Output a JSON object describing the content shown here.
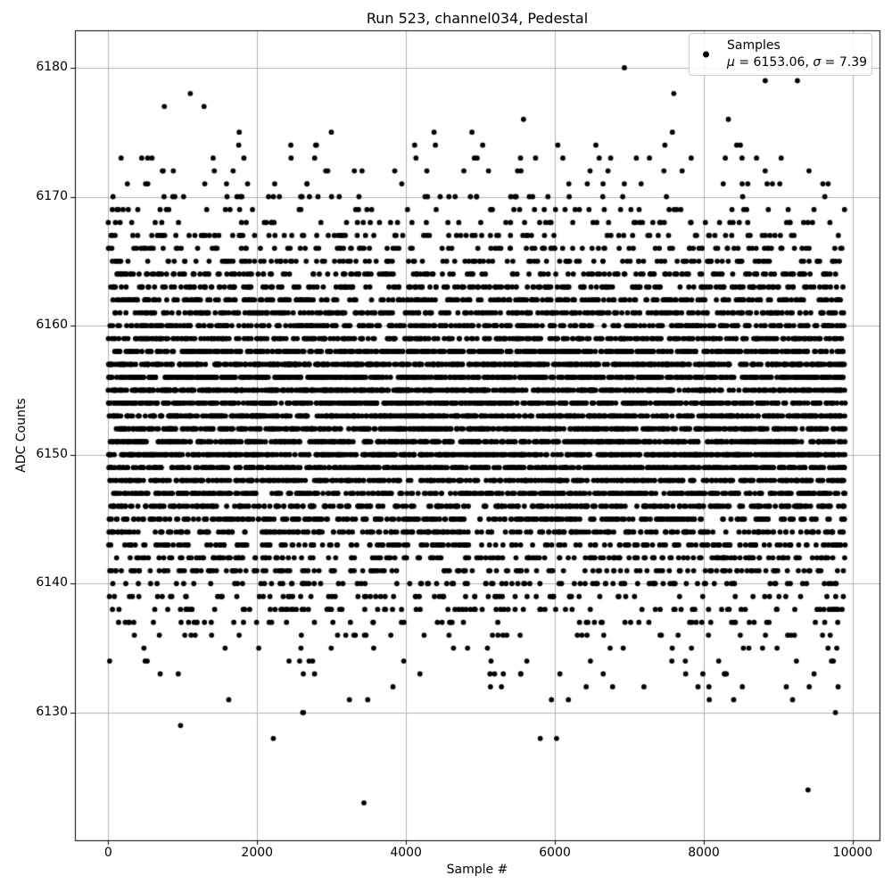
{
  "figure": {
    "title": "Run 523, channel034, Pedestal",
    "background_color": "#ffffff"
  },
  "axes": {
    "xlabel": "Sample #",
    "ylabel": "ADC Counts",
    "grid_color": "#b0b0b0",
    "spine_color": "#000000",
    "tick_color": "#000000"
  },
  "legend": {
    "series_label": "Samples",
    "mu_symbol": "μ",
    "mu_text": " = 6153.06, ",
    "sigma_symbol": "σ",
    "sigma_text": " = 7.39",
    "position": "upper right"
  },
  "chart_data": {
    "type": "scatter",
    "title": "Run 523, channel034, Pedestal",
    "xlabel": "Sample #",
    "ylabel": "ADC Counts",
    "legend_entries": [
      "Samples",
      "μ = 6153.06, σ = 7.39"
    ],
    "legend_position": "upper right",
    "marker": {
      "style": "point",
      "color": "#000000",
      "radius_px": 2.9
    },
    "stats": {
      "mu": 6153.06,
      "sigma": 7.39
    },
    "n_samples": 9900,
    "x_range": [
      0,
      9899
    ],
    "x_description": "sample index, one point per sample",
    "y_description": "integer-quantized ADC counts, approximately normal around mu with width sigma",
    "y_observed_range": [
      6123,
      6180
    ],
    "y_bulk_range": [
      6127,
      6178
    ],
    "xlim": [
      -447,
      10360
    ],
    "ylim": [
      6120.1,
      6182.9
    ],
    "xticks": [
      0,
      2000,
      4000,
      6000,
      8000,
      10000
    ],
    "yticks": [
      6130,
      6140,
      6150,
      6160,
      6170,
      6180
    ],
    "grid": true,
    "notable_points": [
      [
        3435,
        6123
      ],
      [
        9400,
        6124
      ],
      [
        6933,
        6180
      ],
      [
        8825,
        6179
      ],
      [
        9257,
        6179
      ],
      [
        754,
        6177
      ]
    ]
  }
}
